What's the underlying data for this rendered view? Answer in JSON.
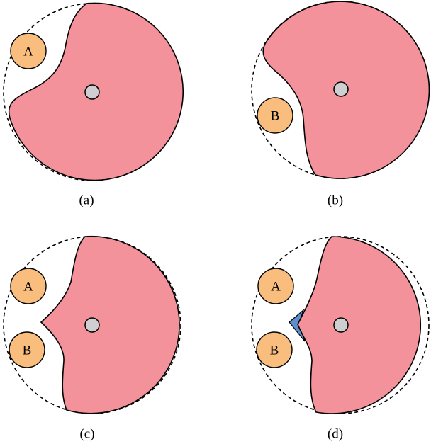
{
  "colors": {
    "region_fill": "#f4929c",
    "agent_fill": "#f9bd7d",
    "center_fill": "#cfcfd1",
    "wedge_fill": "#5b8fcf",
    "stroke": "#000000"
  },
  "panels": [
    {
      "id": "a",
      "caption": "(a)",
      "agents": [
        {
          "label": "A"
        }
      ]
    },
    {
      "id": "b",
      "caption": "(b)",
      "agents": [
        {
          "label": "B"
        }
      ]
    },
    {
      "id": "c",
      "caption": "(c)",
      "agents": [
        {
          "label": "A"
        },
        {
          "label": "B"
        }
      ]
    },
    {
      "id": "d",
      "caption": "(d)",
      "agents": [
        {
          "label": "A"
        },
        {
          "label": "B"
        }
      ]
    }
  ]
}
